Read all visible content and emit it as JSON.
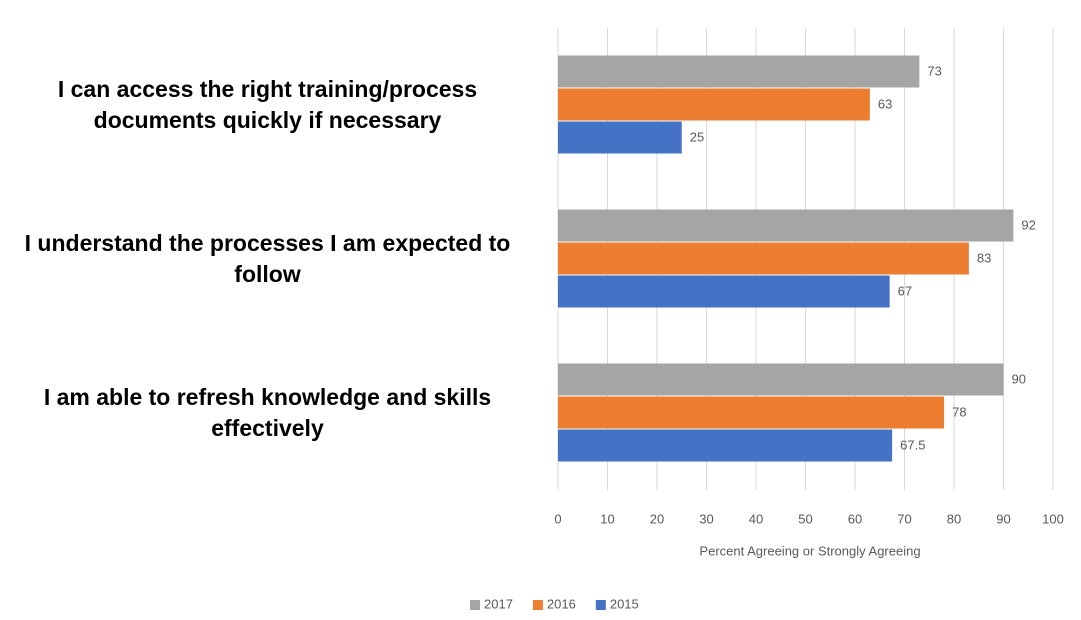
{
  "chart_data": {
    "type": "bar",
    "orientation": "horizontal",
    "categories": [
      "I can access the right training/process documents quickly if necessary",
      "I understand the processes I am expected to follow",
      "I am able to refresh knowledge and skills effectively"
    ],
    "series": [
      {
        "name": "2017",
        "color": "#a5a5a5",
        "values": [
          73,
          92,
          90
        ]
      },
      {
        "name": "2016",
        "color": "#ed7d31",
        "values": [
          63,
          83,
          78
        ]
      },
      {
        "name": "2015",
        "color": "#4472c4",
        "values": [
          25,
          67,
          67.5
        ]
      }
    ],
    "xlabel": "Percent Agreeing or Strongly Agreeing",
    "xlim": [
      0,
      100
    ],
    "xticks": [
      0,
      10,
      20,
      30,
      40,
      50,
      60,
      70,
      80,
      90,
      100
    ],
    "grid": true,
    "legend": "bottom"
  }
}
